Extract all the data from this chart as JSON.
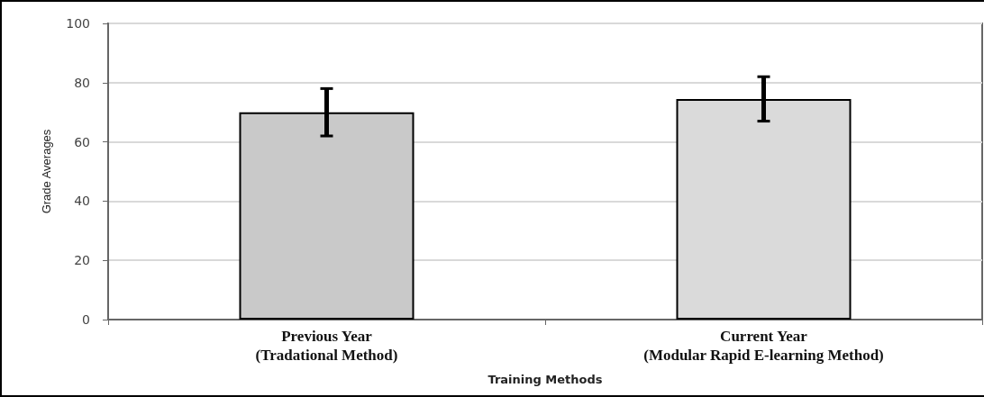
{
  "chart_data": {
    "type": "bar",
    "categories": [
      "Previous Year\n(Tradational Method)",
      "Current Year\n(Modular Rapid E-learning Method)"
    ],
    "values": [
      70,
      74.5
    ],
    "errors": [
      [
        62,
        78
      ],
      [
        67,
        82
      ]
    ],
    "colors": [
      "#c9c9c9",
      "#dadada"
    ],
    "xlabel": "Training Methods",
    "ylabel": "Grade Averages",
    "ylim": [
      0,
      100
    ],
    "yticks": [
      0,
      20,
      40,
      60,
      80,
      100
    ],
    "grid": "y"
  }
}
